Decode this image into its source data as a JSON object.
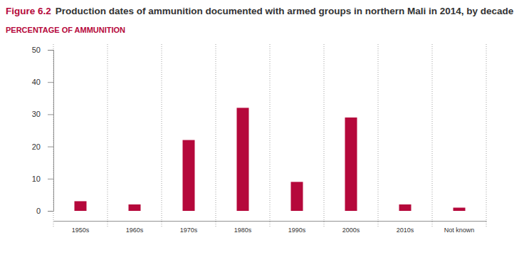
{
  "chart_data": {
    "type": "bar",
    "figure_label": "Figure 6.2",
    "title": "Production dates of ammunition documented with armed groups in northern Mali in 2014, by decade",
    "y_label": "PERCENTAGE OF AMMUNITION",
    "categories": [
      "1950s",
      "1960s",
      "1970s",
      "1980s",
      "1990s",
      "2000s",
      "2010s",
      "Not known"
    ],
    "values": [
      3,
      2,
      22,
      32,
      9,
      29,
      2,
      1
    ],
    "color": "#b5083b",
    "ylim": [
      0,
      50
    ],
    "yticks": [
      0,
      10,
      20,
      30,
      40,
      50
    ]
  }
}
